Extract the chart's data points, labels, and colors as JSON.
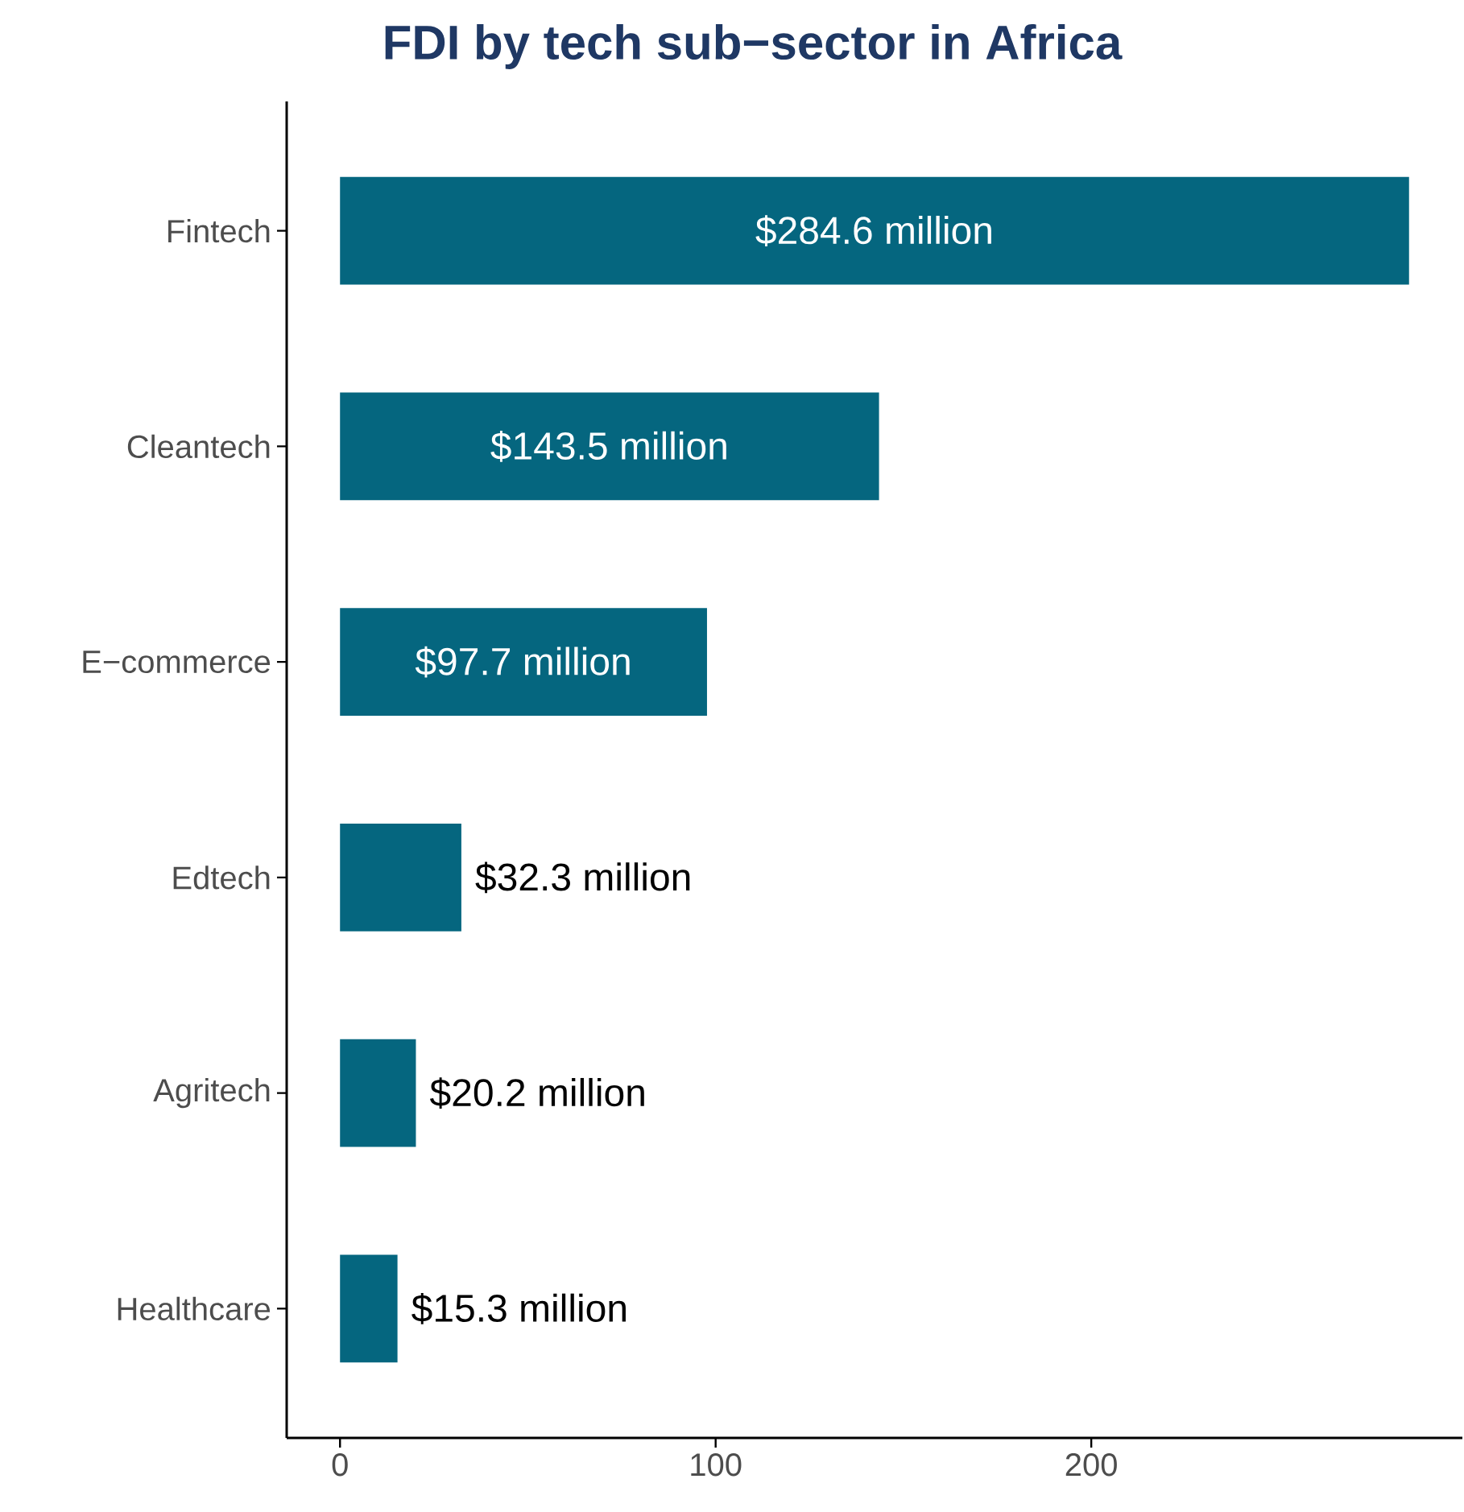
{
  "chart_data": {
    "type": "bar",
    "title": "FDI by tech sub−sector in Africa",
    "orientation": "horizontal",
    "categories": [
      "Fintech",
      "Cleantech",
      "E−commerce",
      "Edtech",
      "Agritech",
      "Healthcare"
    ],
    "values": [
      284.6,
      143.5,
      97.7,
      32.3,
      20.2,
      15.3
    ],
    "value_labels": [
      "$284.6 million",
      "$143.5 million",
      "$97.7 million",
      "$32.3 million",
      "$20.2 million",
      "$15.3 million"
    ],
    "color": "#05667f",
    "xlim": [
      -14.2,
      298.8
    ],
    "xticks": [
      0,
      100,
      200
    ]
  }
}
